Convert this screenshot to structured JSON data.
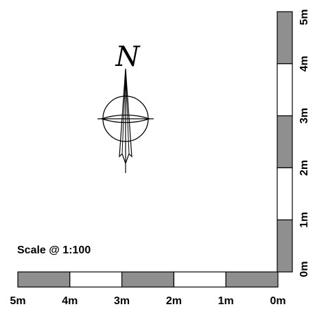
{
  "compass": {
    "north_letter": "N",
    "icon": "north-arrow-icon"
  },
  "scale_note": "Scale @ 1:100",
  "horizontal_scale": {
    "tick_labels": [
      "5m",
      "4m",
      "3m",
      "2m",
      "1m",
      "0m"
    ],
    "segments": [
      "filled",
      "empty",
      "filled",
      "empty",
      "filled"
    ],
    "fill_color": "#8f8f8f",
    "empty_color": "#ffffff"
  },
  "vertical_scale": {
    "tick_labels": [
      "5m",
      "4m",
      "3m",
      "2m",
      "1m",
      "0m"
    ],
    "segments": [
      "filled",
      "empty",
      "filled",
      "empty",
      "filled"
    ],
    "fill_color": "#8f8f8f",
    "empty_color": "#ffffff"
  }
}
